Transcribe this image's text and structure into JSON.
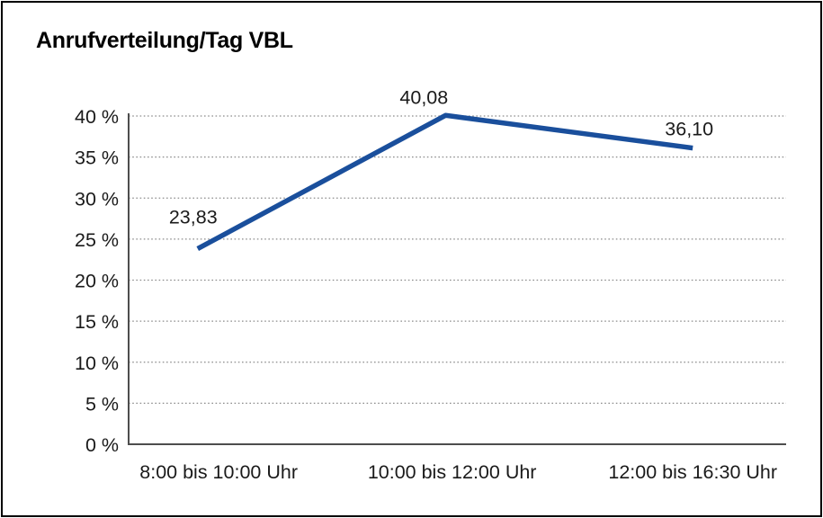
{
  "chart_data": {
    "type": "line",
    "title": "Anrufverteilung/Tag VBL",
    "categories": [
      "8:00 bis 10:00 Uhr",
      "10:00 bis 12:00 Uhr",
      "12:00 bis 16:30 Uhr"
    ],
    "series": [
      {
        "name": "Anrufverteilung",
        "values": [
          23.83,
          40.08,
          36.1
        ]
      }
    ],
    "value_labels": [
      "23,83",
      "40,08",
      "36,10"
    ],
    "xlabel": "",
    "ylabel": "",
    "ylim": [
      0,
      40
    ],
    "yticks": [
      0,
      5,
      10,
      15,
      20,
      25,
      30,
      35,
      40
    ],
    "ytick_labels": [
      "0 %",
      "5 %",
      "10 %",
      "15 %",
      "20 %",
      "25 %",
      "30 %",
      "35 %",
      "40 %"
    ],
    "grid": "horizontal-dotted",
    "legend": "none",
    "colors": {
      "line": "#1A4F9C",
      "axis": "#4D4D4D",
      "grid": "#8C8C8C",
      "text": "#1A1A1A",
      "title": "#000000",
      "background": "#FFFFFF",
      "border": "#000000"
    }
  }
}
